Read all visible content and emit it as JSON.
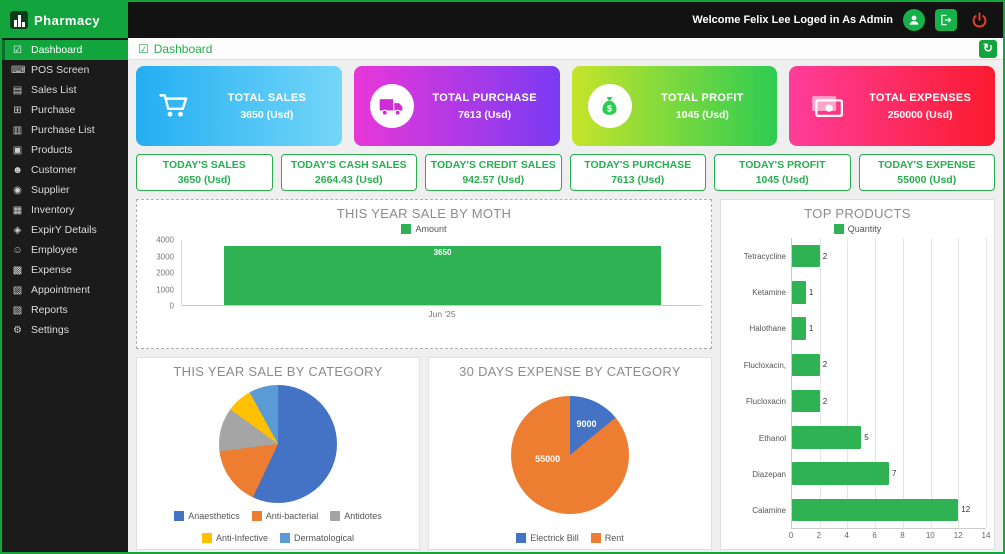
{
  "app": {
    "name": "Pharmacy"
  },
  "topbar": {
    "welcome": "Welcome Felix Lee Loged in As Admin"
  },
  "sidebar": {
    "items": [
      {
        "label": "Dashboard",
        "icon": "dashboard-icon",
        "active": true
      },
      {
        "label": "POS Screen",
        "icon": "pos-screen-icon"
      },
      {
        "label": "Sales List",
        "icon": "sales-list-icon"
      },
      {
        "label": "Purchase",
        "icon": "purchase-icon"
      },
      {
        "label": "Purchase List",
        "icon": "purchase-list-icon"
      },
      {
        "label": "Products",
        "icon": "products-icon"
      },
      {
        "label": "Customer",
        "icon": "customer-icon"
      },
      {
        "label": "Supplier",
        "icon": "supplier-icon"
      },
      {
        "label": "Inventory",
        "icon": "inventory-icon"
      },
      {
        "label": "ExpirY Details",
        "icon": "expiry-details-icon"
      },
      {
        "label": "Employee",
        "icon": "employee-icon"
      },
      {
        "label": "Expense",
        "icon": "expense-icon"
      },
      {
        "label": "Appointment",
        "icon": "appointment-icon"
      },
      {
        "label": "Reports",
        "icon": "reports-icon"
      },
      {
        "label": "Settings",
        "icon": "settings-icon"
      }
    ]
  },
  "breadcrumb": {
    "label": "Dashboard"
  },
  "stat_cards": [
    {
      "label": "TOTAL SALES",
      "value": "3650 (Usd)",
      "icon": "shopping-cart-icon",
      "style": "plain",
      "icon_color": "#ffffff",
      "gradient": [
        "#23aef2",
        "#74d6f8"
      ]
    },
    {
      "label": "TOTAL PURCHASE",
      "value": "7613 (Usd)",
      "icon": "delivery-truck-icon",
      "style": "circle",
      "icon_color": "#cf2bd8",
      "gradient": [
        "#e837d8",
        "#7a3bf2"
      ]
    },
    {
      "label": "TOTAL PROFIT",
      "value": "1045 (Usd)",
      "icon": "money-bag-icon",
      "style": "circle",
      "icon_color": "#2ecc52",
      "gradient": [
        "#c6e42b",
        "#2ecc52"
      ]
    },
    {
      "label": "TOTAL EXPENSES",
      "value": "250000 (Usd)",
      "icon": "cash-icon",
      "style": "plain",
      "icon_color": "#ffffff",
      "gradient": [
        "#ff3d9a",
        "#fb1b2f"
      ]
    }
  ],
  "today_cards": [
    {
      "label": "TODAY'S SALES",
      "value": "3650 (Usd)"
    },
    {
      "label": "TODAY'S CASH SALES",
      "value": "2664.43 (Usd)"
    },
    {
      "label": "TODAY'S CREDIT SALES",
      "value": "942.57 (Usd)"
    },
    {
      "label": "TODAY'S PURCHASE",
      "value": "7613 (Usd)"
    },
    {
      "label": "TODAY'S PROFIT",
      "value": "1045 (Usd)"
    },
    {
      "label": "TODAY'S EXPENSE",
      "value": "55000 (Usd)"
    }
  ],
  "chart_data": [
    {
      "type": "bar",
      "title": "THIS YEAR SALE BY MOTH",
      "legend": [
        "Amount"
      ],
      "categories": [
        "Jun '25"
      ],
      "values": [
        3650
      ],
      "ylim": [
        0,
        4000
      ],
      "yticks": [
        0,
        1000,
        2000,
        3000,
        4000
      ],
      "bar_color": "#2eb254",
      "value_labels": true
    },
    {
      "type": "bar",
      "orientation": "horizontal",
      "title": "TOP PRODUCTS",
      "legend": [
        "Quantity"
      ],
      "categories": [
        "Tetracycline",
        "Ketamine",
        "Halothane",
        "Flucloxacin,",
        "Flucloxacin",
        "Ethanol",
        "Diazepan",
        "Calamine"
      ],
      "values": [
        2,
        1,
        1,
        2,
        2,
        5,
        7,
        12
      ],
      "xlim": [
        0,
        14
      ],
      "xticks": [
        0,
        2,
        4,
        6,
        8,
        10,
        12,
        14
      ],
      "bar_color": "#2eb254",
      "value_labels": true
    },
    {
      "type": "pie",
      "title": "THIS YEAR SALE BY CATEGORY",
      "slices": [
        {
          "label": "Anaesthetics",
          "pct": 57,
          "color": "#4472c4"
        },
        {
          "label": "Anti-bacterial",
          "pct": 16,
          "color": "#ed7d31"
        },
        {
          "label": "Antidotes",
          "pct": 12,
          "color": "#a5a5a5"
        },
        {
          "label": "Anti-Infective",
          "pct": 7,
          "color": "#ffc000"
        },
        {
          "label": "Dermatological",
          "pct": 8,
          "color": "#5b9bd5"
        }
      ]
    },
    {
      "type": "pie",
      "title": "30 DAYS EXPENSE BY CATEGORY",
      "slices": [
        {
          "label": "Electrick Bill",
          "value": 9000,
          "color": "#4472c4",
          "value_label": "9000",
          "label_pos": {
            "x": 64,
            "y": 24
          }
        },
        {
          "label": "Rent",
          "value": 55000,
          "color": "#ed7d31",
          "value_label": "55000",
          "label_pos": {
            "x": 31,
            "y": 54
          }
        }
      ]
    }
  ]
}
